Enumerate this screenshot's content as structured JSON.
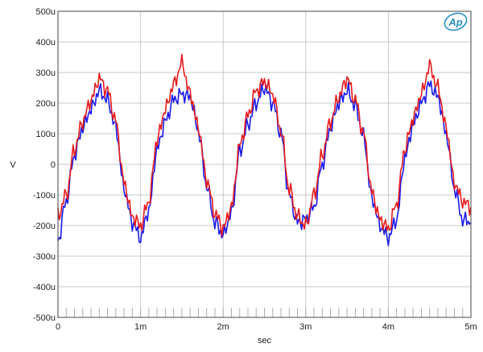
{
  "chart_data": {
    "type": "line",
    "title": "",
    "xlabel": "sec",
    "ylabel": "V",
    "xlim": [
      0,
      0.005
    ],
    "ylim": [
      -0.0005,
      0.0005
    ],
    "x_ticks": [
      {
        "value": 0,
        "label": "0"
      },
      {
        "value": 0.001,
        "label": "1m"
      },
      {
        "value": 0.002,
        "label": "2m"
      },
      {
        "value": 0.003,
        "label": "3m"
      },
      {
        "value": 0.004,
        "label": "4m"
      },
      {
        "value": 0.005,
        "label": "5m"
      }
    ],
    "y_ticks": [
      {
        "value": 0.0005,
        "label": "500u"
      },
      {
        "value": 0.0004,
        "label": "400u"
      },
      {
        "value": 0.0003,
        "label": "300u"
      },
      {
        "value": 0.0002,
        "label": "200u"
      },
      {
        "value": 0.0001,
        "label": "100u"
      },
      {
        "value": 0,
        "label": "0"
      },
      {
        "value": -0.0001,
        "label": "-100u"
      },
      {
        "value": -0.0002,
        "label": "-200u"
      },
      {
        "value": -0.0003,
        "label": "-300u"
      },
      {
        "value": -0.0004,
        "label": "-400u"
      },
      {
        "value": -0.0005,
        "label": "-500u"
      }
    ],
    "grid": true,
    "legend": "none",
    "series": [
      {
        "color": "#1a1aee",
        "x": [
          0.0,
          0.0001,
          0.0002,
          0.0003,
          0.0004,
          0.0005,
          0.0006,
          0.0007,
          0.0008,
          0.0009,
          0.001,
          0.0011,
          0.0012,
          0.0013,
          0.0014,
          0.0015,
          0.0016,
          0.0017,
          0.0018,
          0.0019,
          0.002,
          0.0021,
          0.0022,
          0.0023,
          0.0024,
          0.0025,
          0.0026,
          0.0027,
          0.0028,
          0.0029,
          0.003,
          0.0031,
          0.0032,
          0.0033,
          0.0034,
          0.0035,
          0.0036,
          0.0037,
          0.0038,
          0.0039,
          0.004,
          0.0041,
          0.0042,
          0.0043,
          0.0044,
          0.0045,
          0.0046,
          0.0047,
          0.0048,
          0.0049,
          0.005
        ],
        "y": [
          -0.00025,
          -0.00012,
          3e-05,
          0.00012,
          0.00018,
          0.00024,
          0.00021,
          0.00012,
          -8e-05,
          -0.00019,
          -0.00024,
          -0.00015,
          5e-05,
          0.00014,
          0.00021,
          0.00023,
          0.00022,
          0.00011,
          -7e-05,
          -0.00019,
          -0.00023,
          -0.00016,
          4e-05,
          0.00013,
          0.0002,
          0.00025,
          0.0002,
          0.0001,
          -0.0001,
          -0.00019,
          -0.00018,
          -0.00014,
          0.0,
          0.00012,
          0.0002,
          0.00024,
          0.00019,
          9e-05,
          -0.00011,
          -0.0002,
          -0.00024,
          -0.00018,
          2e-05,
          0.00013,
          0.0002,
          0.00026,
          0.00022,
          0.0001,
          -8e-05,
          -0.00018,
          -0.00019
        ]
      },
      {
        "color": "#e81a1a",
        "x": [
          0.0,
          0.0001,
          0.0002,
          0.0003,
          0.0004,
          0.0005,
          0.0006,
          0.0007,
          0.0008,
          0.0009,
          0.001,
          0.0011,
          0.0012,
          0.0013,
          0.0014,
          0.0015,
          0.0016,
          0.0017,
          0.0018,
          0.0019,
          0.002,
          0.0021,
          0.0022,
          0.0023,
          0.0024,
          0.0025,
          0.0026,
          0.0027,
          0.0028,
          0.0029,
          0.003,
          0.0031,
          0.0032,
          0.0033,
          0.0034,
          0.0035,
          0.0036,
          0.0037,
          0.0038,
          0.0039,
          0.004,
          0.0041,
          0.0042,
          0.0043,
          0.0044,
          0.0045,
          0.0046,
          0.0047,
          0.0048,
          0.0049,
          0.005
        ],
        "y": [
          -0.00017,
          -0.0001,
          5e-05,
          0.00014,
          0.00021,
          0.00028,
          0.00024,
          0.00014,
          -6e-05,
          -0.00017,
          -0.0002,
          -0.00012,
          8e-05,
          0.00018,
          0.00026,
          0.00033,
          0.00023,
          0.00012,
          -5e-05,
          -0.00016,
          -0.00021,
          -0.00014,
          6e-05,
          0.00016,
          0.00024,
          0.00027,
          0.00023,
          0.00011,
          -8e-05,
          -0.00017,
          -0.0002,
          -0.0001,
          3e-05,
          0.00014,
          0.00022,
          0.00028,
          0.00021,
          0.0001,
          -9e-05,
          -0.00018,
          -0.00021,
          -0.00013,
          5e-05,
          0.00015,
          0.00023,
          0.00032,
          0.00025,
          0.00012,
          -6e-05,
          -0.00012,
          -0.00014
        ]
      }
    ]
  },
  "ui": {
    "logo_text": "Ap",
    "logo_color": "#2a8fc4"
  }
}
